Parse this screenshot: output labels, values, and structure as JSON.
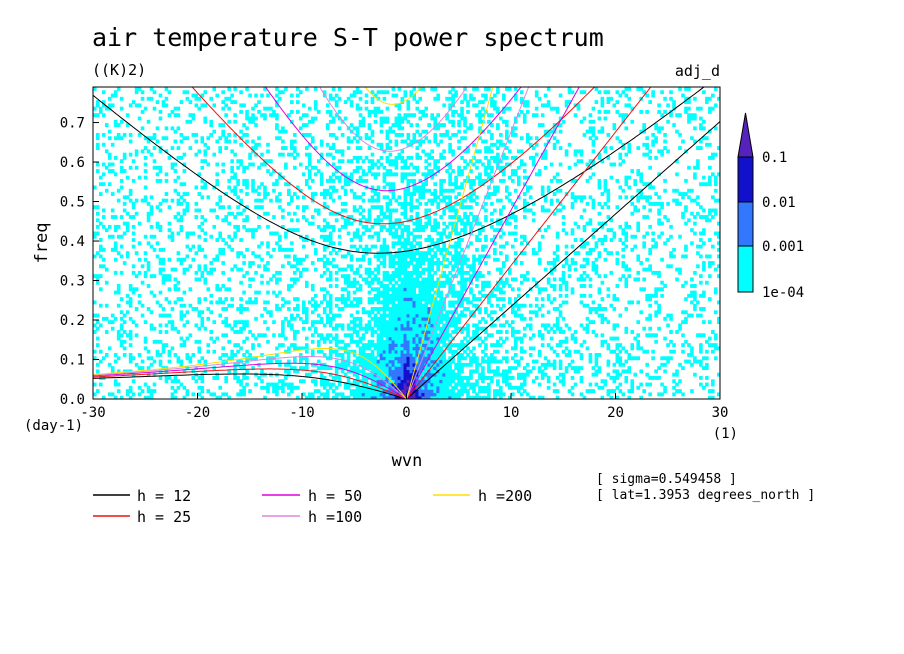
{
  "header": {
    "title": "air temperature S-T power spectrum",
    "units": "((K)2)",
    "tag": "adj_d"
  },
  "axes": {
    "xlabel": "wvn",
    "ylabel": "freq",
    "x_unit": "(1)",
    "y_unit": "(day-1)"
  },
  "notes": {
    "sigma": "[ sigma=0.549458 ]",
    "lat": "[ lat=1.3953 degrees_north ]"
  },
  "colors": {
    "level1": "#00ffff",
    "level2": "#3377ff",
    "level3": "#1111cc",
    "level4": "#5522bb",
    "h12": "#000000",
    "h25": "#ee1111",
    "h50": "#dd00dd",
    "h100": "#dd88dd",
    "h200": "#ffdd00"
  },
  "chart_data": {
    "type": "heatmap",
    "title": "air temperature S-T power spectrum",
    "units": "((K)2)",
    "xlabel": "wvn",
    "ylabel": "freq",
    "xlim": [
      -30,
      30
    ],
    "ylim": [
      0,
      0.79
    ],
    "x_ticks": [
      "-30",
      "-20",
      "-10",
      "0",
      "10",
      "20",
      "30"
    ],
    "x_tick_values": [
      -30,
      -20,
      -10,
      0,
      10,
      20,
      30
    ],
    "y_ticks": [
      "0.0",
      "0.1",
      "0.2",
      "0.3",
      "0.4",
      "0.5",
      "0.6",
      "0.7"
    ],
    "y_tick_values": [
      0,
      0.1,
      0.2,
      0.3,
      0.4,
      0.5,
      0.6,
      0.7
    ],
    "colorbar": {
      "levels": [
        0.0001,
        0.001,
        0.01,
        0.1
      ],
      "labels": [
        "1e-04",
        "0.001",
        "0.01",
        "0.1"
      ]
    },
    "dispersion_curves": [
      {
        "name": "h = 12",
        "h": 12,
        "color": "#000000"
      },
      {
        "name": "h = 25",
        "h": 25,
        "color": "#ee1111"
      },
      {
        "name": "h = 50",
        "h": 50,
        "color": "#dd00dd"
      },
      {
        "name": "h =100",
        "h": 100,
        "color": "#dd88dd"
      },
      {
        "name": "h =200",
        "h": 200,
        "color": "#ffdd00"
      }
    ],
    "grid": false
  }
}
